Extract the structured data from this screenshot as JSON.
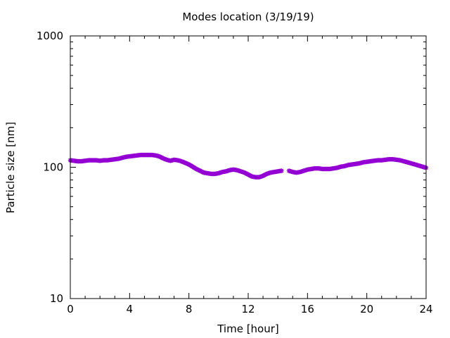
{
  "chart_data": {
    "type": "scatter",
    "title": "Modes location (3/19/19)",
    "xlabel": "Time [hour]",
    "ylabel": "Particle size [nm]",
    "xlim": [
      0,
      24
    ],
    "ylim": [
      10,
      1000
    ],
    "yscale": "log",
    "grid": false,
    "legend": "none",
    "xticks": [
      0,
      4,
      8,
      12,
      16,
      20,
      24
    ],
    "xtick_labels": [
      "0",
      "4",
      "8",
      "12",
      "16",
      "20",
      "24"
    ],
    "yticks": [
      10,
      100,
      1000
    ],
    "ytick_labels": [
      "10",
      "100",
      "1000"
    ],
    "series": [
      {
        "color": "#9400d3",
        "marker": "star",
        "x": [
          0.0,
          0.25,
          0.5,
          0.75,
          1.0,
          1.25,
          1.5,
          1.75,
          2.0,
          2.25,
          2.5,
          2.75,
          3.0,
          3.25,
          3.5,
          3.75,
          4.0,
          4.25,
          4.5,
          4.75,
          5.0,
          5.25,
          5.5,
          5.75,
          6.0,
          6.25,
          6.5,
          6.75,
          7.0,
          7.25,
          7.5,
          7.75,
          8.0,
          8.25,
          8.5,
          8.75,
          9.0,
          9.25,
          9.5,
          9.75,
          10.0,
          10.25,
          10.5,
          10.75,
          11.0,
          11.25,
          11.5,
          11.75,
          12.0,
          12.25,
          12.5,
          12.75,
          13.0,
          13.25,
          13.5,
          13.75,
          14.0,
          14.25,
          14.75,
          15.0,
          15.25,
          15.5,
          15.75,
          16.0,
          16.25,
          16.5,
          16.75,
          17.0,
          17.25,
          17.5,
          17.75,
          18.0,
          18.25,
          18.5,
          18.75,
          19.0,
          19.25,
          19.5,
          19.75,
          20.0,
          20.25,
          20.5,
          20.75,
          21.0,
          21.25,
          21.5,
          21.75,
          22.0,
          22.25,
          22.5,
          22.75,
          23.0,
          23.25,
          23.5,
          23.75,
          24.0
        ],
        "y": [
          113,
          112,
          111,
          111,
          112,
          113,
          113,
          113,
          112,
          113,
          113,
          114,
          115,
          116,
          118,
          120,
          121,
          122,
          123,
          124,
          124,
          124,
          124,
          123,
          121,
          117,
          114,
          112,
          114,
          113,
          111,
          108,
          105,
          101,
          97,
          94,
          91,
          90,
          89,
          89,
          90,
          92,
          93,
          95,
          96,
          95,
          93,
          91,
          88,
          85,
          84,
          84,
          86,
          89,
          91,
          92,
          93,
          94,
          94,
          92,
          91,
          92,
          94,
          96,
          97,
          98,
          98,
          97,
          97,
          97,
          98,
          99,
          101,
          102,
          104,
          105,
          106,
          107,
          109,
          110,
          111,
          112,
          113,
          113,
          114,
          115,
          115,
          114,
          113,
          111,
          109,
          107,
          105,
          103,
          101,
          99
        ]
      }
    ]
  }
}
